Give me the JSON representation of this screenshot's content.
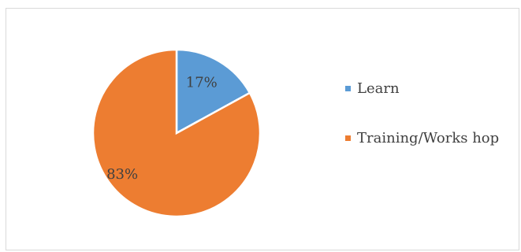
{
  "chart_data": {
    "type": "pie",
    "title": "",
    "slices": [
      {
        "label": "Learn",
        "value": 17,
        "display": "17%",
        "color": "#5b9bd5"
      },
      {
        "label": "Training/Workshop",
        "value": 83,
        "display": "83%",
        "color": "#ed7d31"
      }
    ],
    "legend": {
      "position": "right",
      "entries": [
        "Learn",
        "Training/Works hop"
      ]
    }
  }
}
